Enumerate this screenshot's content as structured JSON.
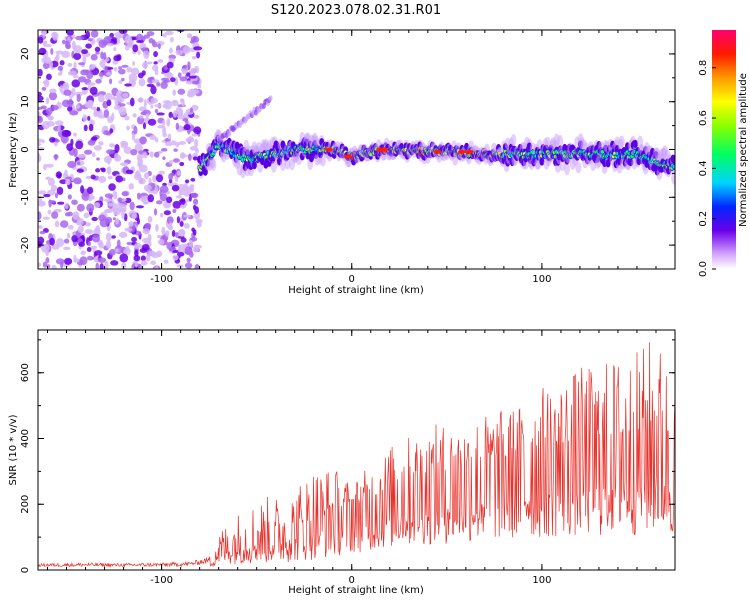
{
  "title": "S120.2023.078.02.31.R01",
  "chart_data": [
    {
      "type": "heatmap",
      "xlabel": "Height of straight line (km)",
      "ylabel": "Frequency (Hz)",
      "xlim": [
        -165,
        170
      ],
      "ylim": [
        -25,
        25
      ],
      "xticks": [
        -100,
        0,
        100
      ],
      "xtick_labels": [
        "-100",
        "0",
        "100"
      ],
      "yticks": [
        -20,
        -10,
        0,
        10,
        20
      ],
      "ytick_labels": [
        "-20",
        "-10",
        "0",
        "10",
        "20"
      ],
      "colorbar": {
        "label": "Normalized spectral amplitude",
        "range": [
          0,
          0.95
        ],
        "ticks": [
          0.0,
          0.2,
          0.4,
          0.6,
          0.8
        ],
        "tick_labels": [
          "0.0",
          "0.2",
          "0.4",
          "0.6",
          "0.8"
        ],
        "colormap": "rainbow"
      },
      "features": [
        {
          "x_range": [
            -165,
            -80
          ],
          "freq_range": [
            -25,
            25
          ],
          "description_values": "scattered low amplitude noise",
          "amplitude": 0.1
        },
        {
          "x_range": [
            -80,
            170
          ],
          "center_freq": [
            [
              -80,
              -4
            ],
            [
              -70,
              1
            ],
            [
              -55,
              -2
            ],
            [
              -30,
              0
            ],
            [
              -10,
              0
            ],
            [
              0,
              -1.5
            ],
            [
              15,
              0
            ],
            [
              50,
              -0.5
            ],
            [
              80,
              -1
            ],
            [
              120,
              -1
            ],
            [
              150,
              -1
            ],
            [
              170,
              -4
            ]
          ],
          "amplitude_peak": 0.95
        }
      ],
      "grid": false
    },
    {
      "type": "line",
      "xlabel": "Height of straight line (km)",
      "ylabel": "SNR (10 * v/v)",
      "xlim": [
        -165,
        170
      ],
      "ylim": [
        0,
        730
      ],
      "xticks": [
        -100,
        0,
        100
      ],
      "xtick_labels": [
        "-100",
        "0",
        "100"
      ],
      "yticks": [
        0,
        200,
        400,
        600
      ],
      "ytick_labels": [
        "0",
        "200",
        "400",
        "600"
      ],
      "series": [
        {
          "color": "#e8322c",
          "envelope": {
            "x": [
              -165,
              -140,
              -120,
              -100,
              -85,
              -75,
              -70,
              -60,
              -50,
              -40,
              -30,
              -20,
              -10,
              0,
              10,
              20,
              30,
              40,
              50,
              60,
              70,
              80,
              90,
              100,
              110,
              120,
              130,
              140,
              150,
              160,
              170
            ],
            "baseline": [
              10,
              10,
              10,
              10,
              12,
              20,
              50,
              60,
              60,
              70,
              80,
              100,
              130,
              170,
              190,
              220,
              240,
              250,
              260,
              270,
              290,
              300,
              310,
              320,
              320,
              330,
              330,
              340,
              340,
              340,
              330
            ],
            "peak": [
              20,
              22,
              20,
              22,
              25,
              40,
              120,
              180,
              220,
              230,
              260,
              330,
              320,
              270,
              320,
              380,
              410,
              440,
              450,
              460,
              480,
              490,
              510,
              560,
              590,
              620,
              630,
              660,
              670,
              730,
              580
            ]
          }
        }
      ],
      "grid": false
    }
  ]
}
